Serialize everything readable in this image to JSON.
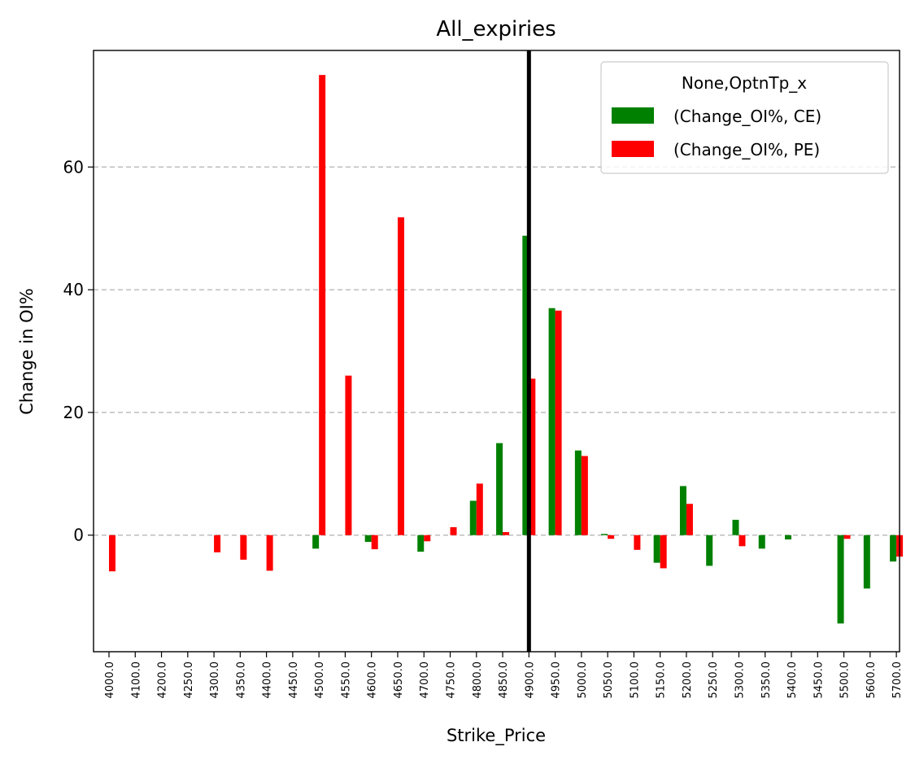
{
  "chart_data": {
    "type": "bar",
    "title": "All_expiries",
    "xlabel": "Strike_Price",
    "ylabel": "Change in OI%",
    "ylim": [
      -19,
      79
    ],
    "yticks": [
      0,
      20,
      40,
      60
    ],
    "grid": "y-dashed",
    "legend": {
      "title": "None,OptnTp_x",
      "placement": "top-right"
    },
    "categories": [
      "4000.0",
      "4100.0",
      "4200.0",
      "4250.0",
      "4300.0",
      "4350.0",
      "4400.0",
      "4450.0",
      "4500.0",
      "4550.0",
      "4600.0",
      "4650.0",
      "4700.0",
      "4750.0",
      "4800.0",
      "4850.0",
      "4900.0",
      "4950.0",
      "5000.0",
      "5050.0",
      "5100.0",
      "5150.0",
      "5200.0",
      "5250.0",
      "5300.0",
      "5350.0",
      "5400.0",
      "5450.0",
      "5500.0",
      "5600.0",
      "5700.0"
    ],
    "series": [
      {
        "name": "(Change_OI%, CE)",
        "color": "#008000",
        "values": [
          0,
          0,
          0,
          0,
          0,
          0,
          0,
          0,
          -2.2,
          0,
          -1.1,
          0,
          -2.7,
          0,
          5.6,
          15.0,
          48.8,
          37.0,
          13.8,
          0.2,
          0,
          -4.5,
          8.0,
          -5.0,
          2.5,
          -2.2,
          -0.7,
          0,
          -14.4,
          -8.7,
          -4.3
        ]
      },
      {
        "name": "(Change_OI%, PE)",
        "color": "#ff0000",
        "values": [
          -5.9,
          0,
          0,
          0,
          -2.8,
          -4.0,
          -5.8,
          0,
          75.0,
          26.0,
          -2.3,
          51.8,
          -1.0,
          1.3,
          8.4,
          0.5,
          25.5,
          36.6,
          12.9,
          -0.6,
          -2.4,
          -5.4,
          5.1,
          0,
          -1.8,
          0,
          0,
          0,
          -0.6,
          0,
          -3.5
        ]
      }
    ],
    "vertical_line": {
      "category": "4900.0",
      "color": "#000000"
    }
  }
}
